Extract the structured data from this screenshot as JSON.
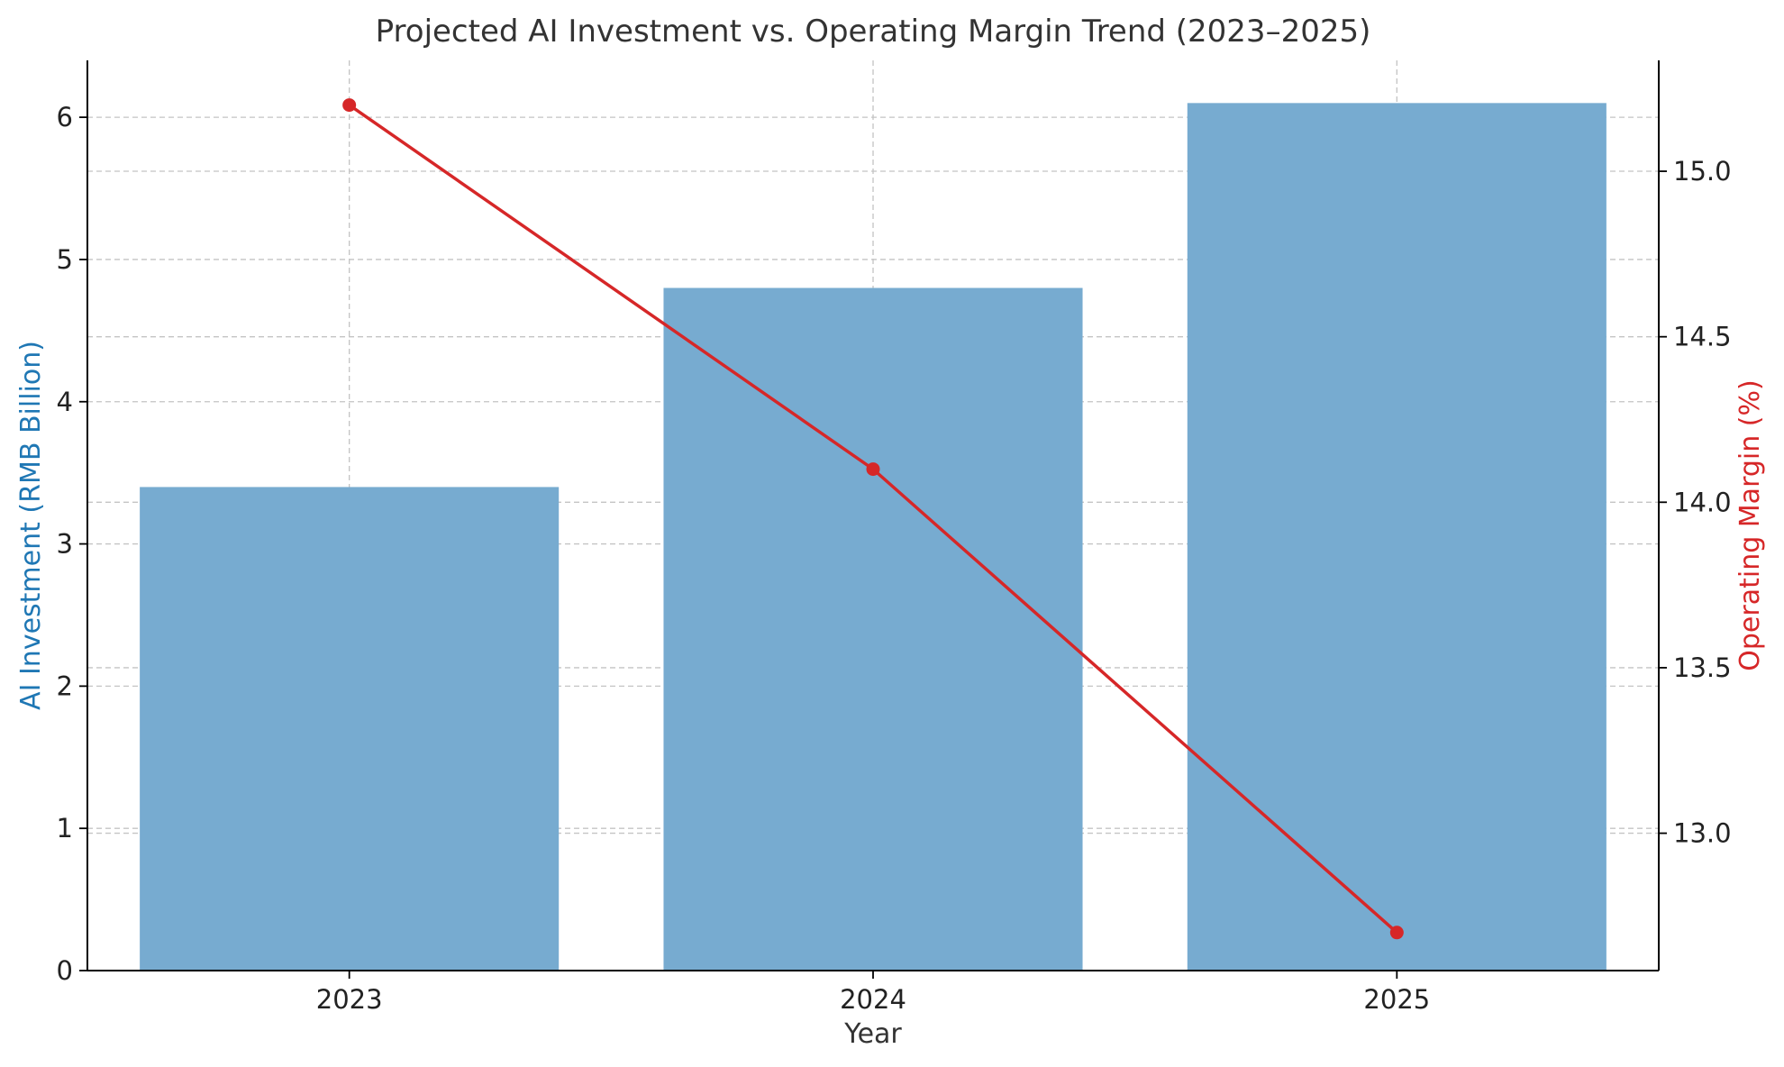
{
  "chart_data": {
    "type": "bar+line",
    "title": "Projected AI Investment vs. Operating Margin Trend (2023–2025)",
    "xlabel": "Year",
    "categories": [
      "2023",
      "2024",
      "2025"
    ],
    "bar_series": {
      "axis_label": "AI Investment (RMB Billion)",
      "values": [
        3.4,
        4.8,
        6.1
      ],
      "color": "#77abd0"
    },
    "line_series": {
      "axis_label": "Operating Margin (%)",
      "values": [
        15.2,
        14.1,
        12.7
      ],
      "color": "#d62728"
    },
    "y_left": {
      "ylim": [
        0,
        6.4
      ],
      "ticks": [
        0,
        1,
        2,
        3,
        4,
        5,
        6
      ],
      "tick_labels": [
        "0",
        "1",
        "2",
        "3",
        "4",
        "5",
        "6"
      ],
      "label_color": "#1f77b4"
    },
    "y_right": {
      "ylim": [
        12.585,
        15.335
      ],
      "ticks": [
        13.0,
        13.5,
        14.0,
        14.5,
        15.0
      ],
      "tick_labels": [
        "13.0",
        "13.5",
        "14.0",
        "14.5",
        "15.0"
      ],
      "label_color": "#d62728"
    },
    "grid": true,
    "grid_style": "dashed"
  }
}
